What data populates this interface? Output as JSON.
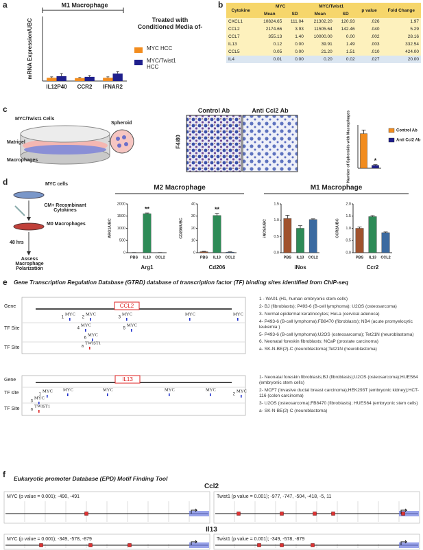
{
  "panel_labels": [
    "a",
    "b",
    "c",
    "d",
    "e",
    "f"
  ],
  "chart_data": [
    {
      "type": "bar",
      "title": "M1 Macrophage",
      "ylabel": "mRNA Expression/UBC",
      "legend_title": "Treated with Conditioned Media of-",
      "categories": [
        "IL12P40",
        "CCR2",
        "IFNAR2"
      ],
      "series": [
        {
          "name": "MYC HCC",
          "color": "#f28c1e",
          "values": [
            1.0,
            0.9,
            1.0
          ],
          "errors": [
            0.3,
            0.2,
            0.3
          ]
        },
        {
          "name": "MYC/Twist1 HCC",
          "color": "#1f1f8c",
          "values": [
            1.5,
            1.3,
            2.3
          ],
          "errors": [
            0.8,
            0.4,
            0.6
          ]
        }
      ],
      "ylim": [
        0,
        20
      ]
    },
    {
      "type": "bar",
      "ylabel": "Number of Spheroids with Macrophages",
      "categories": [
        "Control Ab",
        "Anti Ccl2 Ab"
      ],
      "values": [
        2.4,
        0.2
      ],
      "errors": [
        0.25,
        0.05
      ],
      "colors": [
        "#f28c1e",
        "#1f1f8c"
      ],
      "annotation": "*",
      "ylim": [
        0,
        3
      ]
    },
    {
      "type": "bar",
      "title": "Arg1",
      "ylabel": "ARG1/UBC",
      "categories": [
        "PBS",
        "IL13",
        "CCL2"
      ],
      "values": [
        5,
        1600,
        5
      ],
      "errors": [
        2,
        30,
        2
      ],
      "colors": [
        "#a0522d",
        "#2e8b57",
        "#3b6aa0"
      ],
      "annotation": "**",
      "ylim": [
        0,
        2000
      ],
      "yticks": [
        0,
        500,
        1000,
        1500,
        2000
      ]
    },
    {
      "type": "bar",
      "title": "Cd206",
      "ylabel": "CD206/UBC",
      "categories": [
        "PBS",
        "IL13",
        "CCL2"
      ],
      "values": [
        0.8,
        30.5,
        0.5
      ],
      "errors": [
        0.3,
        1.8,
        0.2
      ],
      "colors": [
        "#a0522d",
        "#2e8b57",
        "#3b6aa0"
      ],
      "annotation": "**",
      "ylim": [
        0,
        40
      ],
      "yticks": [
        0,
        10,
        20,
        30,
        40
      ]
    },
    {
      "type": "bar",
      "title": "iNos",
      "ylabel": "iNOS/UBC",
      "categories": [
        "PBS",
        "IL13",
        "CCL2"
      ],
      "values": [
        1.05,
        0.75,
        1.02
      ],
      "errors": [
        0.1,
        0.08,
        0.02
      ],
      "colors": [
        "#a0522d",
        "#2e8b57",
        "#3b6aa0"
      ],
      "ylim": [
        0,
        1.5
      ],
      "yticks": [
        {
          "value": 0,
          "label": "0.0"
        },
        0.5,
        {
          "value": 1,
          "label": "1.0"
        },
        1.5
      ]
    },
    {
      "type": "bar",
      "title": "Ccr2",
      "ylabel": "CCR2/UBC",
      "categories": [
        "PBS",
        "IL13",
        "CCL2"
      ],
      "values": [
        1.0,
        1.48,
        0.82
      ],
      "errors": [
        0.05,
        0.04,
        0.03
      ],
      "colors": [
        "#a0522d",
        "#2e8b57",
        "#3b6aa0"
      ],
      "ylim": [
        0,
        2
      ],
      "yticks": [
        {
          "value": 0,
          "label": "0.0"
        },
        0.5,
        {
          "value": 1,
          "label": "1.0"
        },
        1.5,
        {
          "value": 2,
          "label": "2.0"
        }
      ]
    }
  ],
  "table": {
    "columns": [
      "Cytokine",
      "MYC",
      "MYC/Twist1",
      "p value",
      "Fold Change"
    ],
    "subcolumns": [
      "Mean",
      "SD",
      "Mean",
      "SD"
    ],
    "rows": [
      [
        "CXCL1",
        "10824.65",
        "111.04",
        "21302.20",
        "120.93",
        ".026",
        "1.97"
      ],
      [
        "CCL2",
        "2174.66",
        "3.93",
        "11505.64",
        "142.46",
        ".040",
        "5.29"
      ],
      [
        "CCL7",
        "355.13",
        "1.40",
        "10000.00",
        "0.00",
        ".002",
        "28.16"
      ],
      [
        "IL13",
        "0.12",
        "0.00",
        "39.91",
        "1.49",
        ".003",
        "332.54"
      ],
      [
        "CCL5",
        "0.05",
        "0.00",
        "21.20",
        "1.51",
        ".010",
        "424.00"
      ],
      [
        "IL4",
        "0.01",
        "0.00",
        "0.20",
        "0.02",
        ".027",
        "20.00"
      ]
    ]
  },
  "panel_c": {
    "diagram": [
      "MYC/Twist1 Cells",
      "Matrigel",
      "Macrophages",
      "Spheroid"
    ],
    "stain": "F4/80",
    "images": [
      "Control Ab",
      "Anti Ccl2 Ab"
    ]
  },
  "panel_d": {
    "steps": [
      "MYC cells",
      "CM+ Recombinant Cytokines",
      "M0 Macrophages",
      "48 hrs",
      "Assess Macrophage Polarization"
    ],
    "headers": [
      "M2 Macrophage",
      "M1 Macrophage"
    ]
  },
  "panel_e": {
    "title": "Gene Transcription Regulation Database (GTRD) database of transcription factor (TF) binding sites identified from ChIP-seq",
    "tracks": [
      {
        "row_labels": [
          "Gene",
          "TF Site",
          "TF Site"
        ],
        "gene": "CCL2",
        "sites": [
          {
            "label": "MYC",
            "num": "1"
          },
          {
            "label": "MYC",
            "num": "2"
          },
          {
            "label": "MYC",
            "num": "3"
          },
          {
            "label": "MYC"
          },
          {
            "label": "MYC"
          },
          {
            "label": "MYC",
            "num": "4"
          },
          {
            "label": "MYC",
            "num": "5"
          },
          {
            "label": "MYC",
            "num": "6"
          },
          {
            "label": "TWIST1",
            "num": "a"
          }
        ],
        "notes": [
          "1 - WA01 (H1, human embryonic stem cells)",
          "2- BJ (fibroblasts); P493-6 (B-cell lymphoma); U2OS (osteosarcoma)",
          "3- Normal epidermal keratinocytes; HeLa (cervical adenoca)",
          "4- P493-6 (B-cell lymphoma);FB8470 (fibroblasts); NB4 (acute promyelocytic leukemia )",
          "5- P493-6 (B-cell lymphoma);U2OS (osteosarcoma); Tet21N (neuroblastoma)",
          "6. Neonatal foreskin fibroblasts; NCaP (prostate carcinoma)",
          "a- SK-N-BE(2)-C (neuroblastoma);Tet21N (neuroblastoma)"
        ]
      },
      {
        "row_labels": [
          "Gene",
          "TF site",
          "TF Site"
        ],
        "gene": "IL13",
        "sites": [
          {
            "label": "MYC",
            "num": "1"
          },
          {
            "label": "MYC"
          },
          {
            "label": "MYC"
          },
          {
            "label": "MYC"
          },
          {
            "label": "MYC"
          },
          {
            "label": "MYC",
            "num": "2"
          },
          {
            "label": "MYC",
            "num": "3"
          },
          {
            "label": "TWIST1",
            "num": "a"
          }
        ],
        "notes": [
          "1- Neonatal foreskin fibroblasts;BJ (fibroblasts);U2OS (osteosarcoma);HUES64 (embryonic stem cells)",
          "2- MCF7 (Invasive ductal breast carcinoma);HEK293T (embryonic kidney);HCT-116 (colon carcinoma)",
          "3- U2OS (osteosarcoma);FB8470 (fibroblasts); HUES64 (embryonic stem cells)",
          "a- SK-N-BE(2)-C (neuroblastoma)"
        ]
      }
    ]
  },
  "panel_f": {
    "title": "Eukaryotic promoter Database (EPD) Motif Finding Tool",
    "genes": [
      {
        "name": "Ccl2",
        "tracks": [
          "MYC (p value = 0.001); -490, -491",
          "Twist1 (p value = 0.001); -977, -747, -504, -418, -5, 11"
        ]
      },
      {
        "name": "Il13",
        "tracks": [
          "MYC (p value = 0.001); -349, -578, -879",
          "Twist1 (p value = 0.001); -349, -578, -879"
        ]
      }
    ]
  }
}
